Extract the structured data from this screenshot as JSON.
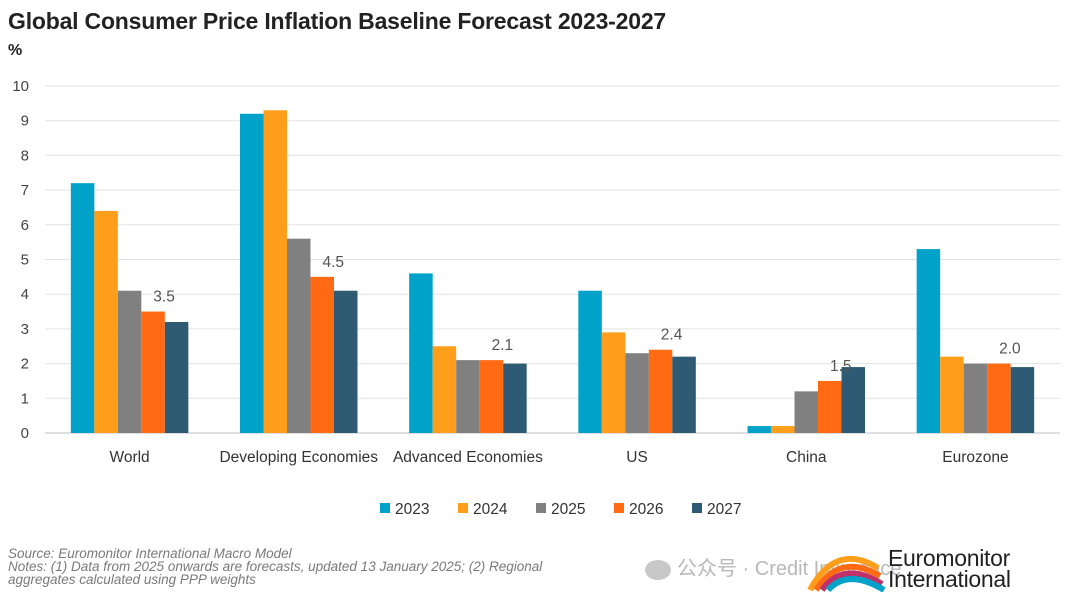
{
  "title": "Global Consumer Price Inflation Baseline Forecast 2023-2027",
  "unit_label": "%",
  "chart_data": {
    "type": "bar",
    "categories": [
      "World",
      "Developing Economies",
      "Advanced Economies",
      "US",
      "China",
      "Eurozone"
    ],
    "series": [
      {
        "name": "2023",
        "color": "#00a2c9",
        "values": [
          7.2,
          9.2,
          4.6,
          4.1,
          0.2,
          5.3
        ]
      },
      {
        "name": "2024",
        "color": "#ff9e1b",
        "values": [
          6.4,
          9.3,
          2.5,
          2.9,
          0.2,
          2.2
        ]
      },
      {
        "name": "2025",
        "color": "#808080",
        "values": [
          4.1,
          5.6,
          2.1,
          2.3,
          1.2,
          2.0
        ]
      },
      {
        "name": "2026",
        "color": "#ff6a13",
        "values": [
          3.5,
          4.5,
          2.1,
          2.4,
          1.5,
          2.0
        ]
      },
      {
        "name": "2027",
        "color": "#2e5b73",
        "values": [
          3.2,
          4.1,
          2.0,
          2.2,
          1.9,
          1.9
        ]
      }
    ],
    "data_labels": [
      {
        "category": "World",
        "series": "2026",
        "text": "3.5"
      },
      {
        "category": "Developing Economies",
        "series": "2026",
        "text": "4.5"
      },
      {
        "category": "Advanced Economies",
        "series": "2026",
        "text": "2.1"
      },
      {
        "category": "US",
        "series": "2026",
        "text": "2.4"
      },
      {
        "category": "China",
        "series": "2026",
        "text": "1.5"
      },
      {
        "category": "Eurozone",
        "series": "2026",
        "text": "2.0"
      }
    ],
    "ylim": [
      0,
      10
    ],
    "yticks": [
      "0",
      "1",
      "2",
      "3",
      "4",
      "5",
      "6",
      "7",
      "8",
      "9",
      "10"
    ],
    "grid": true,
    "legend": "bottom"
  },
  "notes": {
    "source": "Source: Euromonitor International Macro Model",
    "line1": "Notes: (1) Data from 2025 onwards are forecasts, updated 13 January 2025; (2) Regional",
    "line2": "aggregates calculated using PPP weights"
  },
  "brand": {
    "line1": "Euromonitor",
    "line2": "International"
  },
  "watermark": "公众号 · Credit Insurance"
}
